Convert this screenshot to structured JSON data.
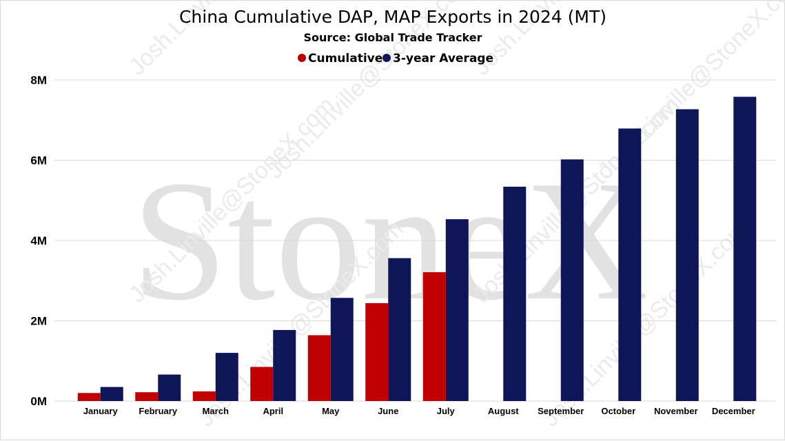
{
  "chart_data": {
    "type": "bar",
    "title": "China Cumulative DAP, MAP Exports in 2024 (MT)",
    "subtitle": "Source: Global Trade Tracker",
    "categories": [
      "January",
      "February",
      "March",
      "April",
      "May",
      "June",
      "July",
      "August",
      "September",
      "October",
      "November",
      "December"
    ],
    "series": [
      {
        "name": "Cumulative",
        "color": "#c00000",
        "values": [
          200000,
          220000,
          240000,
          850000,
          1640000,
          2440000,
          3210000,
          null,
          null,
          null,
          null,
          null
        ]
      },
      {
        "name": "3-year Average",
        "color": "#0f1657",
        "values": [
          350000,
          660000,
          1200000,
          1770000,
          2570000,
          3560000,
          4530000,
          5340000,
          6020000,
          6790000,
          7270000,
          7580000
        ]
      }
    ],
    "ylim": [
      0,
      8000000
    ],
    "yticks": [
      {
        "value": 0,
        "label": "0M"
      },
      {
        "value": 2000000,
        "label": "2M"
      },
      {
        "value": 4000000,
        "label": "4M"
      },
      {
        "value": 6000000,
        "label": "6M"
      },
      {
        "value": 8000000,
        "label": "8M"
      }
    ],
    "grid": true,
    "legend_position": "top-center"
  },
  "watermark": {
    "brand": "StoneX",
    "email": "Josh.Linville@StoneX.com"
  }
}
